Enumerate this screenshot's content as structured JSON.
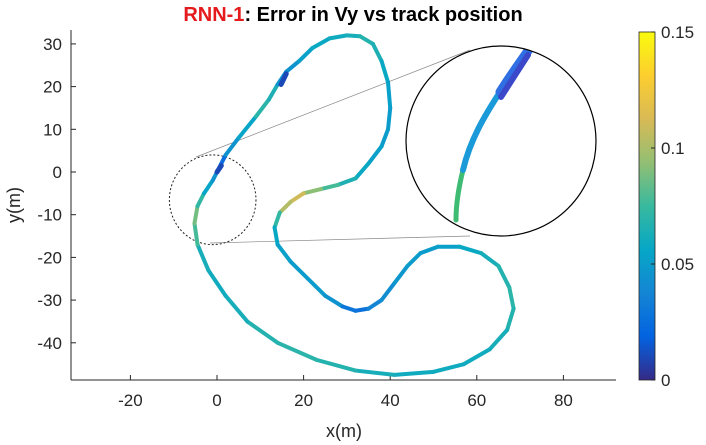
{
  "chart_data": {
    "type": "line",
    "title_prefix": "RNN-1",
    "title_rest": ": Error in Vy vs track position",
    "title_prefix_color": "#e41a1c",
    "xlabel": "x(m)",
    "ylabel": "y(m)",
    "xlim": [
      -33,
      95
    ],
    "ylim": [
      -48,
      33
    ],
    "xticks": [
      -20,
      0,
      20,
      40,
      60,
      80
    ],
    "yticks": [
      30,
      20,
      10,
      0,
      -10,
      -20,
      -30,
      -40
    ],
    "colorbar": {
      "colormap": "parula",
      "limits": [
        0,
        0.15
      ],
      "ticks": [
        0,
        0.05,
        0.1,
        0.15
      ],
      "tick_labels": [
        "0",
        "0.05",
        "0.1",
        "0.15"
      ]
    },
    "track": [
      {
        "x": 0,
        "y": 0,
        "e": 0.01
      },
      {
        "x": 2,
        "y": 4,
        "e": 0.04
      },
      {
        "x": 5,
        "y": 8,
        "e": 0.05
      },
      {
        "x": 9,
        "y": 13,
        "e": 0.06
      },
      {
        "x": 12,
        "y": 17,
        "e": 0.08
      },
      {
        "x": 14,
        "y": 20.5,
        "e": 0.05
      },
      {
        "x": 16,
        "y": 23.5,
        "e": 0.04
      },
      {
        "x": 19,
        "y": 26,
        "e": 0.05
      },
      {
        "x": 22,
        "y": 29,
        "e": 0.055
      },
      {
        "x": 26,
        "y": 31.3,
        "e": 0.06
      },
      {
        "x": 30,
        "y": 32,
        "e": 0.06
      },
      {
        "x": 33,
        "y": 31.8,
        "e": 0.065
      },
      {
        "x": 36,
        "y": 30,
        "e": 0.07
      },
      {
        "x": 38,
        "y": 26,
        "e": 0.06
      },
      {
        "x": 39.5,
        "y": 21,
        "e": 0.055
      },
      {
        "x": 40,
        "y": 15,
        "e": 0.05
      },
      {
        "x": 39.5,
        "y": 10,
        "e": 0.05
      },
      {
        "x": 38,
        "y": 6,
        "e": 0.05
      },
      {
        "x": 35,
        "y": 2,
        "e": 0.055
      },
      {
        "x": 32,
        "y": -1.5,
        "e": 0.06
      },
      {
        "x": 28,
        "y": -3,
        "e": 0.07
      },
      {
        "x": 24,
        "y": -4,
        "e": 0.085
      },
      {
        "x": 20,
        "y": -5,
        "e": 0.1
      },
      {
        "x": 17,
        "y": -7,
        "e": 0.12
      },
      {
        "x": 14.5,
        "y": -9.5,
        "e": 0.085
      },
      {
        "x": 13.3,
        "y": -13,
        "e": 0.06
      },
      {
        "x": 14,
        "y": -17,
        "e": 0.055
      },
      {
        "x": 17,
        "y": -21,
        "e": 0.05
      },
      {
        "x": 21,
        "y": -25,
        "e": 0.05
      },
      {
        "x": 25,
        "y": -29,
        "e": 0.05
      },
      {
        "x": 29,
        "y": -31.5,
        "e": 0.04
      },
      {
        "x": 32,
        "y": -32.5,
        "e": 0.02
      },
      {
        "x": 35,
        "y": -32,
        "e": 0.035
      },
      {
        "x": 38,
        "y": -30,
        "e": 0.04
      },
      {
        "x": 41,
        "y": -26,
        "e": 0.045
      },
      {
        "x": 44,
        "y": -22,
        "e": 0.05
      },
      {
        "x": 47,
        "y": -19,
        "e": 0.05
      },
      {
        "x": 51,
        "y": -17.5,
        "e": 0.05
      },
      {
        "x": 56,
        "y": -17.5,
        "e": 0.055
      },
      {
        "x": 61,
        "y": -19,
        "e": 0.06
      },
      {
        "x": 65,
        "y": -22,
        "e": 0.065
      },
      {
        "x": 67.5,
        "y": -27,
        "e": 0.07
      },
      {
        "x": 68.5,
        "y": -32,
        "e": 0.07
      },
      {
        "x": 67,
        "y": -37,
        "e": 0.065
      },
      {
        "x": 63,
        "y": -41.5,
        "e": 0.06
      },
      {
        "x": 57,
        "y": -45,
        "e": 0.06
      },
      {
        "x": 50,
        "y": -46.8,
        "e": 0.06
      },
      {
        "x": 41,
        "y": -47.5,
        "e": 0.06
      },
      {
        "x": 32,
        "y": -46.5,
        "e": 0.065
      },
      {
        "x": 23,
        "y": -44,
        "e": 0.07
      },
      {
        "x": 14,
        "y": -40,
        "e": 0.07
      },
      {
        "x": 7,
        "y": -35,
        "e": 0.065
      },
      {
        "x": 2,
        "y": -29,
        "e": 0.06
      },
      {
        "x": -2,
        "y": -23,
        "e": 0.06
      },
      {
        "x": -4.5,
        "y": -17,
        "e": 0.065
      },
      {
        "x": -5.2,
        "y": -12,
        "e": 0.09
      },
      {
        "x": -4.5,
        "y": -8,
        "e": 0.085
      },
      {
        "x": -3,
        "y": -5,
        "e": 0.06
      },
      {
        "x": -1,
        "y": -2,
        "e": 0.05
      },
      {
        "x": 0,
        "y": 0,
        "e": 0.04
      }
    ],
    "marker": {
      "x": 16,
      "y": 23,
      "e": 0.01
    },
    "zoom_region": {
      "center_x": -1,
      "center_y": -6.5,
      "radius_x": 10,
      "radius_y": 10.5
    }
  }
}
